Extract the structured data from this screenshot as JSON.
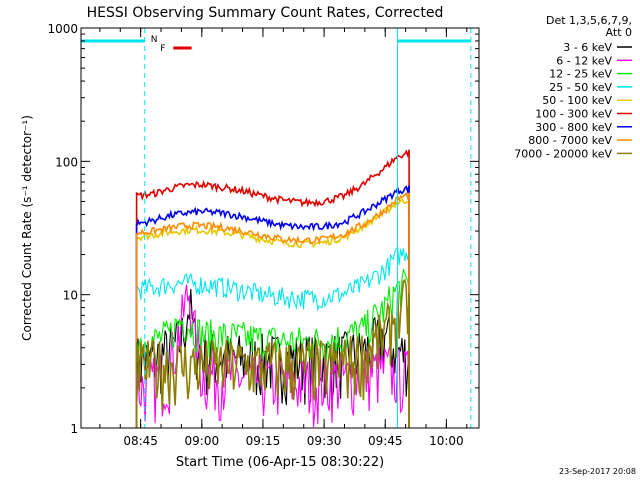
{
  "chart_data": {
    "type": "line",
    "title": "HESSI Observing Summary Count Rates, Corrected",
    "xlabel": "Start Time (06-Apr-15 08:30:22)",
    "ylabel": "Corrected Count Rate (s⁻¹ detector⁻¹)",
    "yscale": "log",
    "ylim": [
      1,
      1000
    ],
    "xlim": [
      "08:30:22",
      "10:08:00"
    ],
    "x_ticks": [
      "08:45",
      "09:00",
      "09:15",
      "09:30",
      "09:45",
      "10:00"
    ],
    "y_ticks": [
      "1",
      "10",
      "100",
      "1000"
    ],
    "footer_date": "23-Sep-2017 20:08",
    "legend": {
      "header": [
        "Det 1,3,5,6,7,9,",
        "Att 0"
      ],
      "placement": "right"
    },
    "flags": {
      "night_label": "N",
      "flare_label": "F",
      "night_color": "#00e5ee",
      "flare_color": "#e00000",
      "night_intervals": [
        [
          "08:30:22",
          "08:46:00"
        ],
        [
          "09:48:00",
          "10:06:00"
        ]
      ],
      "flare_interval": [
        "08:53:00",
        "08:57:30"
      ]
    },
    "series": [
      {
        "name": "3 - 6 keV",
        "color": "#000000",
        "x": [
          "08:44",
          "08:48",
          "08:52",
          "08:55",
          "08:57",
          "08:58",
          "09:00",
          "09:05",
          "09:10",
          "09:15",
          "09:20",
          "09:25",
          "09:30",
          "09:35",
          "09:40",
          "09:45",
          "09:48",
          "09:51"
        ],
        "values": [
          3.2,
          3.3,
          3.8,
          4.5,
          8.5,
          5.0,
          3.5,
          3.4,
          3.3,
          3.3,
          3.3,
          3.3,
          3.3,
          3.4,
          3.7,
          5.0,
          3.8,
          3.5
        ]
      },
      {
        "name": "6 - 12 keV",
        "color": "#ff00ff",
        "x": [
          "08:44",
          "08:48",
          "08:52",
          "08:55",
          "08:57",
          "08:58",
          "09:00",
          "09:05",
          "09:10",
          "09:15",
          "09:20",
          "09:25",
          "09:30",
          "09:35",
          "09:40",
          "09:45",
          "09:48",
          "09:51"
        ],
        "values": [
          2.0,
          2.2,
          2.7,
          6.0,
          11.0,
          5.5,
          2.6,
          2.5,
          2.4,
          2.3,
          2.2,
          2.2,
          2.3,
          2.4,
          2.6,
          2.8,
          2.6,
          2.5
        ]
      },
      {
        "name": "12 - 25 keV",
        "color": "#00ee00",
        "x": [
          "08:44",
          "08:48",
          "08:52",
          "08:55",
          "08:57",
          "09:00",
          "09:05",
          "09:10",
          "09:15",
          "09:20",
          "09:25",
          "09:30",
          "09:35",
          "09:40",
          "09:45",
          "09:48",
          "09:51"
        ],
        "values": [
          4.5,
          4.5,
          5.0,
          6.5,
          6.0,
          5.0,
          4.9,
          4.8,
          4.6,
          4.5,
          4.4,
          4.5,
          4.8,
          5.5,
          8.0,
          11.0,
          12.5
        ]
      },
      {
        "name": "25 - 50 keV",
        "color": "#00e5ee",
        "x": [
          "08:44",
          "08:48",
          "08:52",
          "08:56",
          "09:00",
          "09:05",
          "09:10",
          "09:15",
          "09:20",
          "09:25",
          "09:30",
          "09:35",
          "09:40",
          "09:45",
          "09:48",
          "09:51"
        ],
        "values": [
          11.0,
          11.3,
          12.0,
          12.3,
          12.0,
          11.5,
          10.8,
          10.0,
          9.6,
          9.4,
          9.5,
          10.2,
          12.0,
          15.5,
          19.5,
          22.0
        ]
      },
      {
        "name": "50 - 100 keV",
        "color": "#e6c800",
        "x": [
          "08:44",
          "08:48",
          "08:52",
          "08:56",
          "09:00",
          "09:05",
          "09:10",
          "09:15",
          "09:20",
          "09:25",
          "09:30",
          "09:35",
          "09:40",
          "09:45",
          "09:48",
          "09:51"
        ],
        "values": [
          27.0,
          28.0,
          29.5,
          30.5,
          30.5,
          29.5,
          28.0,
          26.0,
          24.5,
          24.0,
          24.5,
          27.0,
          33.0,
          42.0,
          49.0,
          52.0
        ]
      },
      {
        "name": "100 - 300 keV",
        "color": "#e00000",
        "x": [
          "08:44",
          "08:48",
          "08:52",
          "08:56",
          "09:00",
          "09:05",
          "09:10",
          "09:15",
          "09:20",
          "09:25",
          "09:30",
          "09:35",
          "09:40",
          "09:45",
          "09:48",
          "09:51"
        ],
        "values": [
          55.0,
          57.0,
          62.0,
          66.0,
          67.0,
          64.0,
          60.0,
          55.0,
          51.0,
          49.0,
          50.0,
          55.0,
          68.0,
          90.0,
          108.0,
          118.0
        ]
      },
      {
        "name": "300 - 800 keV",
        "color": "#0000ee",
        "x": [
          "08:44",
          "08:48",
          "08:52",
          "08:56",
          "09:00",
          "09:05",
          "09:10",
          "09:15",
          "09:20",
          "09:25",
          "09:30",
          "09:35",
          "09:40",
          "09:45",
          "09:48",
          "09:51"
        ],
        "values": [
          34.0,
          36.0,
          39.0,
          41.0,
          42.0,
          41.0,
          38.5,
          35.5,
          33.0,
          32.0,
          32.5,
          35.0,
          42.0,
          52.0,
          60.0,
          63.0
        ]
      },
      {
        "name": "800 - 7000 keV",
        "color": "#ff8c00",
        "x": [
          "08:44",
          "08:48",
          "08:52",
          "08:56",
          "09:00",
          "09:05",
          "09:10",
          "09:15",
          "09:20",
          "09:25",
          "09:30",
          "09:35",
          "09:40",
          "09:45",
          "09:48",
          "09:51"
        ],
        "values": [
          29.0,
          30.0,
          31.5,
          33.0,
          33.0,
          32.0,
          30.0,
          28.0,
          26.0,
          25.5,
          26.0,
          28.5,
          34.0,
          43.0,
          52.0,
          57.0
        ]
      },
      {
        "name": "7000 - 20000 keV",
        "color": "#8b7d00",
        "x": [
          "08:44",
          "08:48",
          "08:52",
          "08:56",
          "09:00",
          "09:05",
          "09:10",
          "09:15",
          "09:20",
          "09:25",
          "09:30",
          "09:35",
          "09:40",
          "09:45",
          "09:48",
          "09:51"
        ],
        "values": [
          2.9,
          3.0,
          3.0,
          3.0,
          3.0,
          3.0,
          3.0,
          3.0,
          3.0,
          3.0,
          3.0,
          3.1,
          3.6,
          5.0,
          7.5,
          9.0
        ]
      }
    ]
  }
}
